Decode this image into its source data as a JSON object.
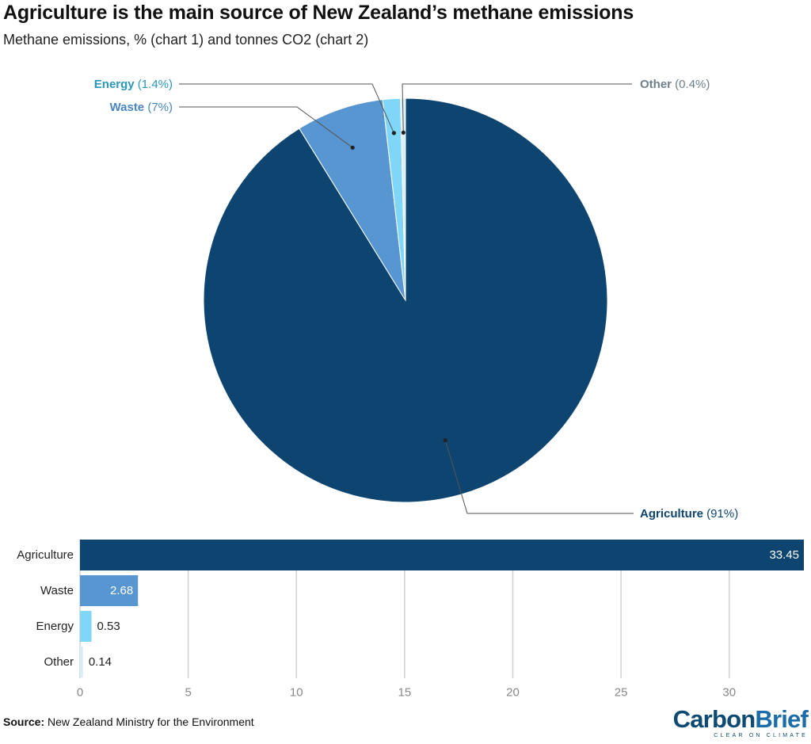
{
  "header": {
    "title": "Agriculture is the main source of New Zealand’s methane emissions",
    "subtitle": "Methane emissions, % (chart 1) and tonnes CO2 (chart 2)"
  },
  "chart_data": [
    {
      "type": "pie",
      "labels": [
        "Agriculture",
        "Waste",
        "Energy",
        "Other"
      ],
      "values": [
        91,
        7,
        1.4,
        0.4
      ],
      "value_labels": [
        "(91%)",
        "(7%)",
        "(1.4%)",
        "(0.4%)"
      ],
      "colors": [
        "#0d4570",
        "#5896d2",
        "#7fd6f7",
        "#d8eef8"
      ]
    },
    {
      "type": "bar",
      "orientation": "horizontal",
      "categories": [
        "Agriculture",
        "Waste",
        "Energy",
        "Other"
      ],
      "values": [
        33.45,
        2.68,
        0.53,
        0.14
      ],
      "value_labels": [
        "33.45",
        "2.68",
        "0.53",
        "0.14"
      ],
      "colors": [
        "#0d4570",
        "#5896d2",
        "#7fd6f7",
        "#d8eef8"
      ],
      "xlim": [
        0,
        33.45
      ],
      "xticks": [
        0,
        5,
        10,
        15,
        20,
        25,
        30
      ],
      "xtick_labels": [
        "0",
        "5",
        "10",
        "15",
        "20",
        "25",
        "30"
      ],
      "grid": true
    }
  ],
  "footer": {
    "source_label": "Source:",
    "source_text": "New Zealand Ministry for the Environment",
    "logo_part1": "Carbon",
    "logo_part2": "Brief",
    "logo_tagline": "CLEAR ON CLIMATE"
  }
}
